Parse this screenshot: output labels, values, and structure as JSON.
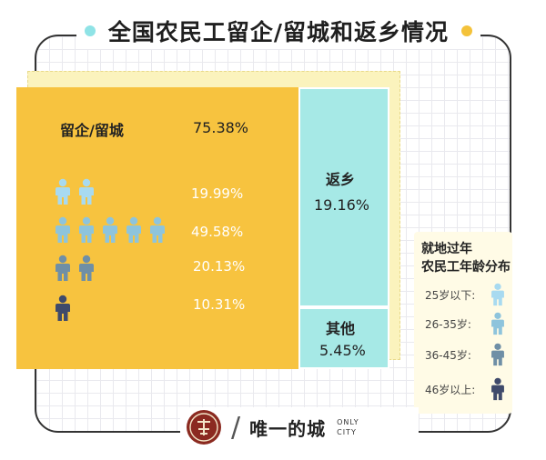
{
  "title": "全国农民工留企/留城和返乡情况",
  "colors": {
    "stay": "#f7c33f",
    "return": "#a6e9e6",
    "age_25_below": "#a8daf0",
    "age_26_35": "#8ec4dc",
    "age_36_45": "#6f8fa6",
    "age_46_above": "#3f4a6b"
  },
  "chart_data": {
    "type": "treemap",
    "title": "全国农民工留企/留城和返乡情况",
    "blocks": [
      {
        "name": "留企/留城",
        "value": 75.38,
        "value_label": "75.38%"
      },
      {
        "name": "返乡",
        "value": 19.16,
        "value_label": "19.16%"
      },
      {
        "name": "其他",
        "value": 5.45,
        "value_label": "5.45%"
      }
    ],
    "age_breakdown": [
      {
        "group": "25岁以下",
        "value": 19.99,
        "value_label": "19.99%",
        "icons": 2
      },
      {
        "group": "26-35岁",
        "value": 49.58,
        "value_label": "49.58%",
        "icons": 5
      },
      {
        "group": "36-45岁",
        "value": 20.13,
        "value_label": "20.13%",
        "icons": 2
      },
      {
        "group": "46岁以上",
        "value": 10.31,
        "value_label": "10.31%",
        "icons": 1
      }
    ]
  },
  "legend": {
    "title_line1": "就地过年",
    "title_line2": "农民工年龄分布",
    "items": [
      {
        "label": "25岁以下:",
        "icon": "person-icon"
      },
      {
        "label": "26-35岁:",
        "icon": "person-icon"
      },
      {
        "label": "36-45岁:",
        "icon": "person-icon"
      },
      {
        "label": "46岁以上:",
        "icon": "person-icon"
      }
    ]
  },
  "footer": {
    "brand": "唯一的城",
    "brand_en_line1": "ONLY",
    "brand_en_line2": "CITY",
    "slash": "/",
    "logo_icon": "seal-logo-icon"
  }
}
